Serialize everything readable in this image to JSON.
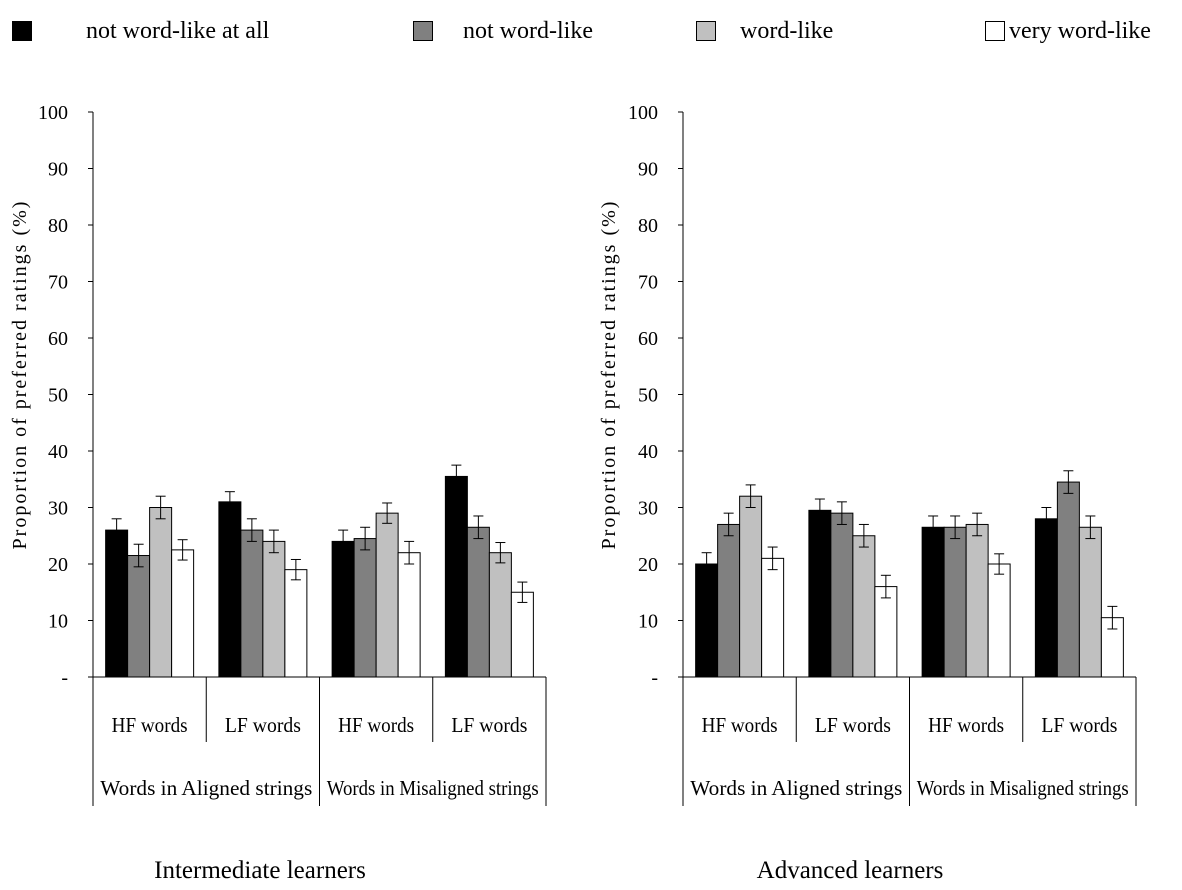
{
  "legend": [
    {
      "label": "not word-like at all",
      "color": "#000000"
    },
    {
      "label": "not word-like",
      "color": "#808080"
    },
    {
      "label": "word-like",
      "color": "#c0c0c0"
    },
    {
      "label": "very word-like",
      "color": "#ffffff"
    }
  ],
  "chart_data": [
    {
      "type": "bar",
      "title": "Intermediate learners",
      "ylabel": "Proportion of preferred ratings (%)",
      "ylim": [
        0,
        100
      ],
      "yticks": [
        "-",
        "10",
        "20",
        "30",
        "40",
        "50",
        "60",
        "70",
        "80",
        "90",
        "100"
      ],
      "categories": [
        "HF words",
        "LF words",
        "HF words",
        "LF words"
      ],
      "groups": [
        "Words in Aligned strings",
        "Words in Misaligned strings"
      ],
      "series": [
        {
          "name": "not word-like at all",
          "values": [
            26,
            31,
            24,
            35.5
          ],
          "errors": [
            2,
            1.8,
            2,
            2
          ]
        },
        {
          "name": "not word-like",
          "values": [
            21.5,
            26,
            24.5,
            26.5
          ],
          "errors": [
            2,
            2,
            2,
            2
          ]
        },
        {
          "name": "word-like",
          "values": [
            30,
            24,
            29,
            22
          ],
          "errors": [
            2,
            2,
            1.8,
            1.8
          ]
        },
        {
          "name": "very word-like",
          "values": [
            22.5,
            19,
            22,
            15
          ],
          "errors": [
            1.8,
            1.8,
            2,
            1.8
          ]
        }
      ]
    },
    {
      "type": "bar",
      "title": "Advanced learners",
      "ylabel": "Proportion of preferred ratings (%)",
      "ylim": [
        0,
        100
      ],
      "yticks": [
        "-",
        "10",
        "20",
        "30",
        "40",
        "50",
        "60",
        "70",
        "80",
        "90",
        "100"
      ],
      "categories": [
        "HF words",
        "LF words",
        "HF words",
        "LF words"
      ],
      "groups": [
        "Words in Aligned strings",
        "Words in Misaligned strings"
      ],
      "series": [
        {
          "name": "not word-like at all",
          "values": [
            20,
            29.5,
            26.5,
            28
          ],
          "errors": [
            2,
            2,
            2,
            2
          ]
        },
        {
          "name": "not word-like",
          "values": [
            27,
            29,
            26.5,
            34.5
          ],
          "errors": [
            2,
            2,
            2,
            2
          ]
        },
        {
          "name": "word-like",
          "values": [
            32,
            25,
            27,
            26.5
          ],
          "errors": [
            2,
            2,
            2,
            2
          ]
        },
        {
          "name": "very word-like",
          "values": [
            21,
            16,
            20,
            10.5
          ],
          "errors": [
            2,
            2,
            1.8,
            2
          ]
        }
      ]
    }
  ]
}
